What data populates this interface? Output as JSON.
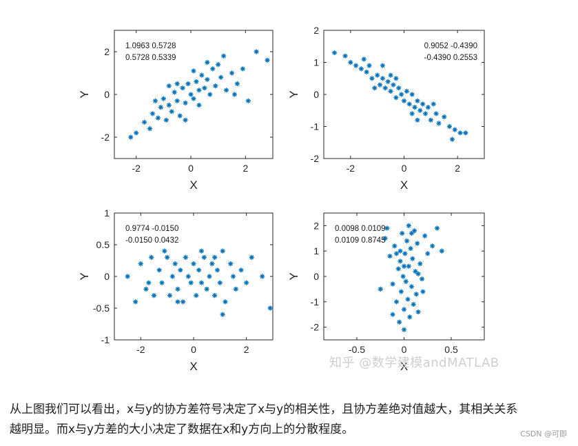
{
  "chart_data": [
    {
      "type": "scatter",
      "xlabel": "X",
      "ylabel": "Y",
      "xlim": [
        -2.8,
        3.0
      ],
      "ylim": [
        -3,
        3
      ],
      "xticks": [
        -2,
        0,
        2
      ],
      "yticks": [
        -2,
        0,
        2
      ],
      "covariance_text": [
        "1.0963   0.5728",
        "0.5728   0.5339"
      ],
      "cov": [
        [
          1.0963,
          0.5728
        ],
        [
          0.5728,
          0.5339
        ]
      ],
      "points": [
        [
          -2.2,
          -2.0
        ],
        [
          -2.0,
          -1.8
        ],
        [
          -1.7,
          -1.3
        ],
        [
          -1.5,
          -1.6
        ],
        [
          -1.4,
          -0.9
        ],
        [
          -1.2,
          -1.1
        ],
        [
          -1.1,
          -0.6
        ],
        [
          -1.0,
          -0.2
        ],
        [
          -0.9,
          -1.2
        ],
        [
          -0.8,
          -0.5
        ],
        [
          -0.7,
          -0.8
        ],
        [
          -0.6,
          0.1
        ],
        [
          -0.5,
          -0.3
        ],
        [
          -0.4,
          -1.0
        ],
        [
          -0.3,
          0.3
        ],
        [
          -0.2,
          -0.4
        ],
        [
          -0.1,
          0.5
        ],
        [
          0.0,
          0.0
        ],
        [
          0.1,
          -0.2
        ],
        [
          0.2,
          0.6
        ],
        [
          0.3,
          0.2
        ],
        [
          0.4,
          0.9
        ],
        [
          0.5,
          0.3
        ],
        [
          0.6,
          0.7
        ],
        [
          0.7,
          0.0
        ],
        [
          0.8,
          1.2
        ],
        [
          0.9,
          0.4
        ],
        [
          1.0,
          1.4
        ],
        [
          1.1,
          0.8
        ],
        [
          1.3,
          0.2
        ],
        [
          1.5,
          1.0
        ],
        [
          1.7,
          0.5
        ],
        [
          1.9,
          1.2
        ],
        [
          2.1,
          -0.3
        ],
        [
          2.4,
          2.0
        ],
        [
          2.8,
          1.6
        ],
        [
          -0.5,
          0.5
        ],
        [
          0.3,
          -0.5
        ],
        [
          -1.3,
          -0.3
        ],
        [
          0.6,
          1.5
        ],
        [
          1.2,
          1.8
        ],
        [
          -0.8,
          0.4
        ],
        [
          0.1,
          1.1
        ],
        [
          -0.2,
          -1.2
        ],
        [
          1.6,
          0.0
        ]
      ]
    },
    {
      "type": "scatter",
      "xlabel": "X",
      "ylabel": "Y",
      "xlim": [
        -3.0,
        3.0
      ],
      "ylim": [
        -2,
        2
      ],
      "xticks": [
        -2,
        0,
        2
      ],
      "yticks": [
        -2,
        -1,
        0,
        1,
        2
      ],
      "covariance_text": [
        "0.9052   -0.4390",
        "-0.4390   0.2553"
      ],
      "cov": [
        [
          0.9052,
          -0.439
        ],
        [
          -0.439,
          0.2553
        ]
      ],
      "points": [
        [
          -2.6,
          1.3
        ],
        [
          -2.2,
          1.2
        ],
        [
          -2.0,
          1.0
        ],
        [
          -1.8,
          0.9
        ],
        [
          -1.6,
          0.8
        ],
        [
          -1.4,
          0.7
        ],
        [
          -1.3,
          0.9
        ],
        [
          -1.2,
          0.5
        ],
        [
          -1.0,
          0.6
        ],
        [
          -0.9,
          0.3
        ],
        [
          -0.8,
          0.5
        ],
        [
          -0.7,
          0.2
        ],
        [
          -0.6,
          0.4
        ],
        [
          -0.5,
          0.1
        ],
        [
          -0.4,
          0.3
        ],
        [
          -0.3,
          -0.1
        ],
        [
          -0.2,
          0.2
        ],
        [
          -0.1,
          0.0
        ],
        [
          0.0,
          -0.2
        ],
        [
          0.1,
          0.1
        ],
        [
          0.2,
          -0.3
        ],
        [
          0.3,
          0.0
        ],
        [
          0.4,
          -0.4
        ],
        [
          0.5,
          -0.2
        ],
        [
          0.6,
          -0.5
        ],
        [
          0.7,
          -0.3
        ],
        [
          0.8,
          -0.6
        ],
        [
          0.9,
          -0.4
        ],
        [
          1.0,
          -0.8
        ],
        [
          1.2,
          -0.6
        ],
        [
          1.3,
          -0.9
        ],
        [
          1.5,
          -0.7
        ],
        [
          1.7,
          -1.0
        ],
        [
          1.9,
          -1.1
        ],
        [
          2.1,
          -1.2
        ],
        [
          2.3,
          -1.2
        ],
        [
          -1.5,
          1.1
        ],
        [
          -0.5,
          0.6
        ],
        [
          0.5,
          -0.8
        ],
        [
          1.1,
          -0.3
        ],
        [
          -1.1,
          0.2
        ],
        [
          0.3,
          -0.6
        ],
        [
          -0.3,
          0.5
        ],
        [
          1.8,
          -1.4
        ],
        [
          -0.8,
          0.9
        ]
      ]
    },
    {
      "type": "scatter",
      "xlabel": "X",
      "ylabel": "Y",
      "xlim": [
        -3.0,
        3.0
      ],
      "ylim": [
        -1,
        1
      ],
      "xticks": [
        -2,
        0,
        2
      ],
      "yticks": [
        -1,
        -0.5,
        0,
        0.5,
        1
      ],
      "covariance_text": [
        "0.9774   -0.0150",
        "-0.0150   0.0432"
      ],
      "cov": [
        [
          0.9774,
          -0.015
        ],
        [
          -0.015,
          0.0432
        ]
      ],
      "points": [
        [
          -2.5,
          0.0
        ],
        [
          -2.2,
          -0.4
        ],
        [
          -2.0,
          0.2
        ],
        [
          -1.8,
          -0.2
        ],
        [
          -1.6,
          0.3
        ],
        [
          -1.5,
          -0.3
        ],
        [
          -1.3,
          0.1
        ],
        [
          -1.2,
          -0.1
        ],
        [
          -1.0,
          0.3
        ],
        [
          -0.9,
          -0.3
        ],
        [
          -0.8,
          0.0
        ],
        [
          -0.7,
          0.2
        ],
        [
          -0.6,
          -0.2
        ],
        [
          -0.5,
          0.1
        ],
        [
          -0.4,
          -0.4
        ],
        [
          -0.3,
          0.3
        ],
        [
          -0.2,
          0.0
        ],
        [
          -0.1,
          -0.1
        ],
        [
          0.0,
          0.2
        ],
        [
          0.1,
          -0.3
        ],
        [
          0.2,
          0.1
        ],
        [
          0.3,
          -0.1
        ],
        [
          0.4,
          0.3
        ],
        [
          0.5,
          -0.2
        ],
        [
          0.6,
          0.0
        ],
        [
          0.7,
          0.2
        ],
        [
          0.8,
          -0.3
        ],
        [
          0.9,
          0.1
        ],
        [
          1.0,
          -0.1
        ],
        [
          1.1,
          0.4
        ],
        [
          1.2,
          -0.4
        ],
        [
          1.4,
          0.2
        ],
        [
          1.6,
          -0.2
        ],
        [
          1.8,
          0.1
        ],
        [
          2.0,
          -0.1
        ],
        [
          2.2,
          0.3
        ],
        [
          2.6,
          0.0
        ],
        [
          2.9,
          -0.5
        ],
        [
          1.1,
          -0.6
        ],
        [
          -1.1,
          0.4
        ],
        [
          0.3,
          0.4
        ],
        [
          -0.6,
          -0.4
        ],
        [
          0.8,
          0.3
        ],
        [
          -1.7,
          -0.1
        ],
        [
          1.5,
          0.0
        ]
      ]
    },
    {
      "type": "scatter",
      "xlabel": "X",
      "ylabel": "Y",
      "xlim": [
        -0.85,
        0.85
      ],
      "ylim": [
        -2.5,
        2.5
      ],
      "xticks": [
        -0.5,
        0,
        0.5
      ],
      "yticks": [
        -2,
        -1,
        0,
        1,
        2
      ],
      "covariance_text": [
        "0.0098   0.0109",
        "0.0109   0.8745"
      ],
      "cov": [
        [
          0.0098,
          0.0109
        ],
        [
          0.0109,
          0.8745
        ]
      ],
      "points": [
        [
          -0.2,
          1.5
        ],
        [
          -0.15,
          0.8
        ],
        [
          -0.12,
          -0.3
        ],
        [
          -0.1,
          1.2
        ],
        [
          -0.08,
          -1.0
        ],
        [
          -0.06,
          0.3
        ],
        [
          -0.05,
          -1.8
        ],
        [
          -0.04,
          0.6
        ],
        [
          -0.03,
          -0.6
        ],
        [
          -0.02,
          1.7
        ],
        [
          -0.01,
          0.0
        ],
        [
          0.0,
          -1.3
        ],
        [
          0.01,
          0.9
        ],
        [
          0.02,
          -0.2
        ],
        [
          0.03,
          1.4
        ],
        [
          0.04,
          -0.9
        ],
        [
          0.05,
          0.4
        ],
        [
          0.06,
          -1.6
        ],
        [
          0.07,
          1.1
        ],
        [
          0.08,
          -0.4
        ],
        [
          0.09,
          0.7
        ],
        [
          0.1,
          -1.1
        ],
        [
          0.11,
          1.8
        ],
        [
          0.12,
          0.2
        ],
        [
          0.13,
          -0.7
        ],
        [
          0.14,
          1.3
        ],
        [
          0.15,
          -1.4
        ],
        [
          0.17,
          0.5
        ],
        [
          0.19,
          -0.1
        ],
        [
          0.22,
          1.6
        ],
        [
          0.25,
          0.9
        ],
        [
          0.3,
          1.2
        ],
        [
          0.35,
          1.9
        ],
        [
          0.4,
          1.0
        ],
        [
          -0.25,
          -0.5
        ],
        [
          -0.18,
          1.9
        ],
        [
          0.0,
          -2.1
        ],
        [
          0.05,
          2.0
        ],
        [
          -0.08,
          0.9
        ],
        [
          0.15,
          0.1
        ],
        [
          -0.12,
          -1.5
        ],
        [
          0.2,
          -0.6
        ],
        [
          0.0,
          0.4
        ],
        [
          -0.04,
          1.0
        ],
        [
          0.08,
          1.7
        ]
      ]
    }
  ],
  "watermark": "知乎 @数学建模andMATLAB",
  "caption_line1": "从上图我们可以看出，x与y的协方差符号决定了x与y的相关性，且协方差绝对值越大，其相关关系",
  "caption_line2": "越明显。而x与y方差的大小决定了数据在x和y方向上的分散程度。",
  "credit": "CSDN @可即",
  "colors": {
    "marker": "#0072BD",
    "axis": "#262626",
    "text": "#262626"
  }
}
